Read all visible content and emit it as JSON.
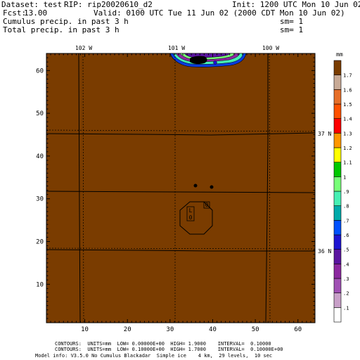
{
  "header": {
    "dataset_label": "Dataset: test",
    "rip_label": "RIP: rip20020610_d2",
    "init": "Init: 1200 UTC Mon 10 Jun 02",
    "fcst_label": "Fcst:",
    "fcst_value": "13.00",
    "valid": "Valid: 0100 UTC Tue 11 Jun 02 (2000 CDT Mon 10 Jun 02)",
    "field1": "Cumulus precip. in past 3 h",
    "field1_sm": "sm= 1",
    "field2": "Total precip. in past 3 h",
    "field2_sm": "sm= 1"
  },
  "map": {
    "x_ticks": [
      "10",
      "20",
      "30",
      "40",
      "50",
      "60"
    ],
    "y_ticks": [
      "10",
      "20",
      "30",
      "40",
      "50",
      "60"
    ],
    "lon_labels": [
      "102 W",
      "101 W",
      "100 W"
    ],
    "lat_labels": [
      "37 N",
      "36 N"
    ],
    "low_label": "L",
    "low_value": "0",
    "contour_label": "0",
    "background_color": "#7a3c00"
  },
  "colorbar": {
    "unit": "mm",
    "labels": [
      ".1",
      ".2",
      ".3",
      ".4",
      ".5",
      ".6",
      ".7",
      ".8",
      ".9",
      "1",
      "1.1",
      "1.2",
      "1.3",
      "1.4",
      "1.5",
      "1.6",
      "1.7"
    ],
    "colors": [
      "#ffffff",
      "#c8a0c8",
      "#a050b4",
      "#8c28a0",
      "#5a14a0",
      "#1e14d2",
      "#0050ff",
      "#00aaaa",
      "#46f0b4",
      "#78ff78",
      "#00c800",
      "#ffff00",
      "#ff9600",
      "#ff0000",
      "#ff5000",
      "#e66e28",
      "#c8aa96",
      "#7a3c00"
    ]
  },
  "footer": {
    "line1": "CONTOURS:  UNITS=mm  LOW= 0.00000E+00  HIGH= 1.9000    INTERVAL=  0.10000",
    "line2": "CONTOURS:  UNITS=mm  LOW= 0.10000E+00  HIGH= 1.7000    INTERVAL=  0.10000E+00",
    "line3": "Model info: V3.5.0 No Cumulus Blackadar  Simple ice    4 km,  29 levels,  10 sec"
  }
}
